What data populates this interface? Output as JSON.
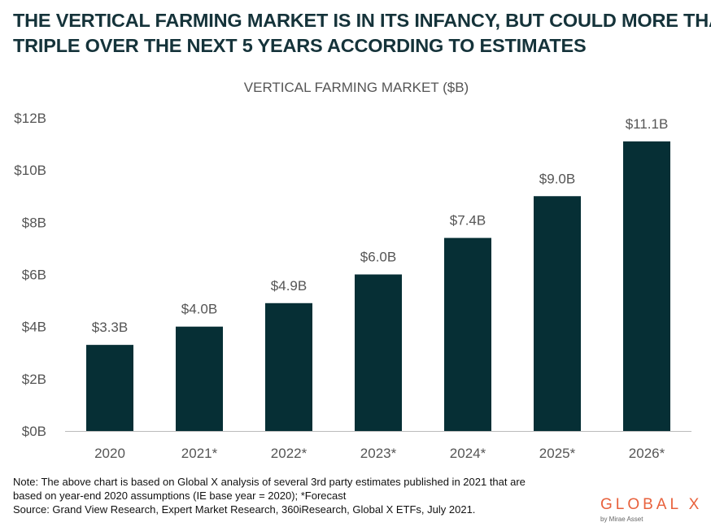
{
  "headline": {
    "line1": "THE VERTICAL FARMING MARKET IS IN ITS INFANCY, BUT COULD MORE THAN",
    "line2": "TRIPLE OVER THE NEXT 5 YEARS ACCORDING TO ESTIMATES"
  },
  "chart_data": {
    "type": "bar",
    "title": "VERTICAL FARMING MARKET ($B)",
    "categories": [
      "2020",
      "2021*",
      "2022*",
      "2023*",
      "2024*",
      "2025*",
      "2026*"
    ],
    "values": [
      3.3,
      4.0,
      4.9,
      6.0,
      7.4,
      9.0,
      11.1
    ],
    "data_labels": [
      "$3.3B",
      "$4.0B",
      "$4.9B",
      "$6.0B",
      "$7.4B",
      "$9.0B",
      "$11.1B"
    ],
    "yticks": [
      0,
      2,
      4,
      6,
      8,
      10,
      12
    ],
    "ytick_labels": [
      "$0B",
      "$2B",
      "$4B",
      "$6B",
      "$8B",
      "$10B",
      "$12B"
    ],
    "ylim": [
      0,
      12
    ],
    "grid": false,
    "bar_color": "#062f35"
  },
  "footnote": {
    "line1": "Note: The above chart is based on Global X analysis of several 3rd party estimates published in 2021 that are",
    "line2": "based on year-end 2020 assumptions (IE base year = 2020); *Forecast",
    "line3": "Source: Grand View Research, Expert Market Research, 360iResearch, Global X ETFs, July 2021."
  },
  "logo": {
    "main": "GLOBAL X",
    "sub": "by Mirae Asset",
    "color": "#e8613c"
  }
}
